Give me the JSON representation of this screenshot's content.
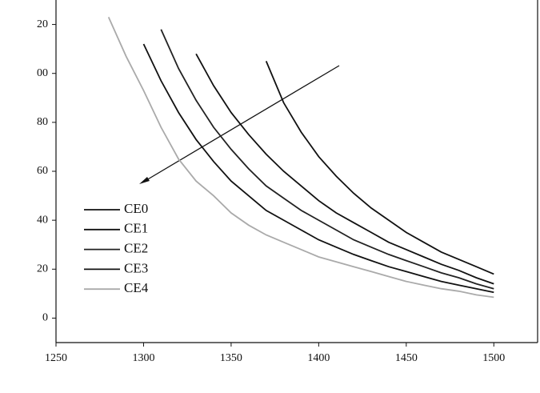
{
  "chart_data": {
    "type": "line",
    "x": [
      1280,
      1290,
      1300,
      1310,
      1320,
      1330,
      1340,
      1350,
      1360,
      1370,
      1380,
      1390,
      1400,
      1410,
      1420,
      1430,
      1440,
      1450,
      1460,
      1470,
      1480,
      1490,
      1500
    ],
    "series": [
      {
        "name": "CE0",
        "color": "#111111",
        "values": [
          null,
          null,
          null,
          null,
          null,
          null,
          null,
          null,
          null,
          105,
          88,
          76,
          66,
          58,
          51,
          45,
          40,
          35,
          31,
          27,
          24,
          21,
          18
        ]
      },
      {
        "name": "CE1",
        "color": "#111111",
        "values": [
          null,
          null,
          null,
          null,
          null,
          108,
          95,
          84,
          75,
          67,
          60,
          54,
          48,
          43,
          39,
          35,
          31,
          28,
          25,
          22,
          19.5,
          16.5,
          14
        ]
      },
      {
        "name": "CE2",
        "color": "#222222",
        "values": [
          null,
          null,
          null,
          118,
          102,
          89,
          78,
          69,
          61,
          54,
          49,
          44,
          40,
          36,
          32,
          29,
          26,
          23.5,
          21,
          18.5,
          16.5,
          14,
          12
        ]
      },
      {
        "name": "CE3",
        "color": "#111111",
        "values": [
          null,
          null,
          112,
          97,
          84,
          73,
          64,
          56,
          50,
          44,
          40,
          36,
          32,
          29,
          26,
          23.5,
          21,
          19,
          17,
          15,
          13.5,
          12,
          10.5
        ]
      },
      {
        "name": "CE4",
        "color": "#aaaaaa",
        "values": [
          123,
          107,
          93,
          78,
          65,
          56,
          50,
          43,
          38,
          34,
          31,
          28,
          25,
          23,
          21,
          19,
          17,
          15,
          13.5,
          12,
          11,
          9.5,
          8.5
        ]
      }
    ],
    "xlim": [
      1250,
      1525
    ],
    "xticks": [
      1250,
      1300,
      1350,
      1400,
      1450,
      1500
    ],
    "ylim": [
      -10,
      130
    ],
    "yticks": [
      0,
      20,
      40,
      60,
      80,
      {
        "value": 100,
        "label": "00"
      },
      {
        "value": 120,
        "label": "20"
      }
    ]
  }
}
